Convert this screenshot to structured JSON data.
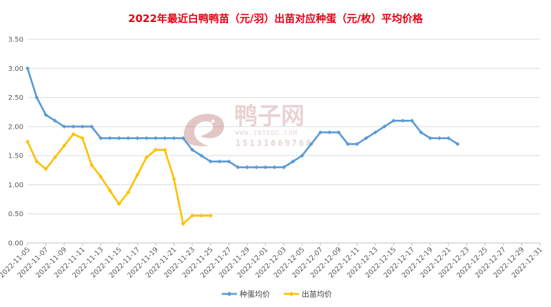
{
  "colors": {
    "title": "#e60012",
    "egg_series": "#5b9bd5",
    "chick_series": "#ffc000",
    "grid": "#d9d9d9",
    "axis": "#bfbfbf",
    "tick_text": "#595959",
    "watermark": "#c08080"
  },
  "watermark": {
    "brand": "鸭子网",
    "url": "WWW.INTEDC.COM",
    "phone": "15131069768",
    "icon": "duck-logo-icon"
  },
  "chart_data": {
    "type": "line",
    "title": "2022年最近白鸭鸭苗（元/羽）出苗对应种蛋（元/枚）平均价格",
    "xlabel": "",
    "ylabel": "",
    "ylim": [
      0,
      3.5
    ],
    "yticks": [
      "0.00",
      "0.50",
      "1.00",
      "1.50",
      "2.00",
      "2.50",
      "3.00",
      "3.50"
    ],
    "grid": true,
    "legend_position": "bottom",
    "x": [
      "2022-11-05",
      "2022-11-06",
      "2022-11-07",
      "2022-11-08",
      "2022-11-09",
      "2022-11-10",
      "2022-11-11",
      "2022-11-12",
      "2022-11-13",
      "2022-11-14",
      "2022-11-15",
      "2022-11-16",
      "2022-11-17",
      "2022-11-18",
      "2022-11-19",
      "2022-11-20",
      "2022-11-21",
      "2022-11-22",
      "2022-11-23",
      "2022-11-24",
      "2022-11-25",
      "2022-11-26",
      "2022-11-27",
      "2022-11-28",
      "2022-11-29",
      "2022-11-30",
      "2022-12-01",
      "2022-12-02",
      "2022-12-03",
      "2022-12-04",
      "2022-12-05",
      "2022-12-06",
      "2022-12-07",
      "2022-12-08",
      "2022-12-09",
      "2022-12-10",
      "2022-12-11",
      "2022-12-12",
      "2022-12-13",
      "2022-12-14",
      "2022-12-15",
      "2022-12-16",
      "2022-12-17",
      "2022-12-18",
      "2022-12-19",
      "2022-12-20",
      "2022-12-21",
      "2022-12-22",
      "2022-12-23",
      "2022-12-24",
      "2022-12-25",
      "2022-12-26",
      "2022-12-27",
      "2022-12-28",
      "2022-12-29",
      "2022-12-30",
      "2022-12-31"
    ],
    "xtick_labels": [
      "2022-11-05",
      "2022-11-07",
      "2022-11-09",
      "2022-11-11",
      "2022-11-13",
      "2022-11-15",
      "2022-11-17",
      "2022-11-19",
      "2022-11-21",
      "2022-11-23",
      "2022-11-25",
      "2022-11-27",
      "2022-11-29",
      "2022-12-01",
      "2022-12-03",
      "2022-12-05",
      "2022-12-07",
      "2022-12-09",
      "2022-12-11",
      "2022-12-13",
      "2022-12-15",
      "2022-12-17",
      "2022-12-19",
      "2022-12-21",
      "2022-12-23",
      "2022-12-25",
      "2022-12-27",
      "2022-12-29",
      "2022-12-31"
    ],
    "series": [
      {
        "name": "种蛋均价",
        "color": "#5b9bd5",
        "values": [
          3.0,
          2.5,
          2.2,
          2.1,
          2.0,
          2.0,
          2.0,
          2.0,
          1.8,
          1.8,
          1.8,
          1.8,
          1.8,
          1.8,
          1.8,
          1.8,
          1.8,
          1.8,
          1.6,
          1.5,
          1.4,
          1.4,
          1.4,
          1.3,
          1.3,
          1.3,
          1.3,
          1.3,
          1.3,
          1.4,
          1.5,
          1.7,
          1.9,
          1.9,
          1.9,
          1.7,
          1.7,
          1.8,
          1.9,
          2.0,
          2.1,
          2.1,
          2.1,
          1.9,
          1.8,
          1.8,
          1.8,
          1.7,
          null,
          null,
          null,
          null,
          null,
          null,
          null,
          null,
          null
        ]
      },
      {
        "name": "出苗均价",
        "color": "#ffc000",
        "values": [
          1.74,
          1.4,
          1.27,
          1.47,
          1.67,
          1.87,
          1.8,
          1.34,
          1.14,
          0.9,
          0.67,
          0.87,
          1.17,
          1.47,
          1.6,
          1.6,
          1.1,
          0.33,
          0.47,
          0.47,
          0.47,
          null,
          null,
          null,
          null,
          null,
          null,
          null,
          null,
          null,
          null,
          null,
          null,
          null,
          null,
          null,
          null,
          null,
          null,
          null,
          null,
          null,
          null,
          null,
          null,
          null,
          null,
          null,
          null,
          null,
          null,
          null,
          null,
          null,
          null,
          null,
          null
        ]
      }
    ]
  }
}
